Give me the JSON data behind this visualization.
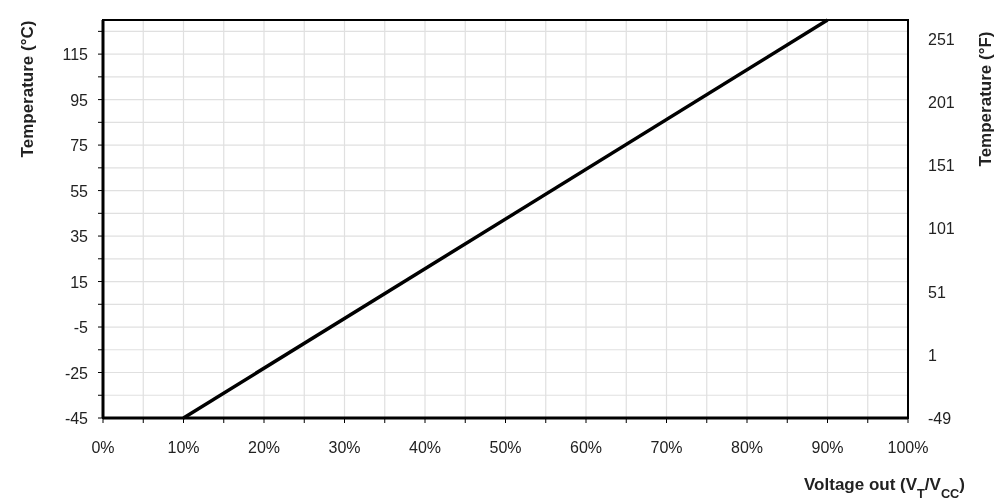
{
  "chart_data": {
    "type": "line",
    "xlabel": "Voltage out (V$_{T}$/V$_{CC}$)",
    "ylabel": "Temperature (°C)",
    "y2label": "Temperature (°F)",
    "x": [
      10,
      90
    ],
    "series": [
      {
        "color": "#000000",
        "values": [
          -45,
          130
        ]
      }
    ],
    "xlim": [
      0,
      100
    ],
    "xticks": [
      {
        "value": 0,
        "label": "0%"
      },
      {
        "value": 5,
        "label": null
      },
      {
        "value": 10,
        "label": "10%"
      },
      {
        "value": 15,
        "label": null
      },
      {
        "value": 20,
        "label": "20%"
      },
      {
        "value": 25,
        "label": null
      },
      {
        "value": 30,
        "label": "30%"
      },
      {
        "value": 35,
        "label": null
      },
      {
        "value": 40,
        "label": "40%"
      },
      {
        "value": 45,
        "label": null
      },
      {
        "value": 50,
        "label": "50%"
      },
      {
        "value": 55,
        "label": null
      },
      {
        "value": 60,
        "label": "60%"
      },
      {
        "value": 65,
        "label": null
      },
      {
        "value": 70,
        "label": "70%"
      },
      {
        "value": 75,
        "label": null
      },
      {
        "value": 80,
        "label": "80%"
      },
      {
        "value": 85,
        "label": null
      },
      {
        "value": 90,
        "label": "90%"
      },
      {
        "value": 95,
        "label": null
      },
      {
        "value": 100,
        "label": "100%"
      }
    ],
    "ylim": [
      -45,
      130
    ],
    "yticks": [
      -45,
      {
        "value": -35,
        "label": null
      },
      -25,
      {
        "value": -15,
        "label": null
      },
      -5,
      {
        "value": 5,
        "label": null
      },
      15,
      {
        "value": 25,
        "label": null
      },
      35,
      {
        "value": 45,
        "label": null
      },
      55,
      {
        "value": 65,
        "label": null
      },
      75,
      {
        "value": 85,
        "label": null
      },
      95,
      {
        "value": 105,
        "label": null
      },
      115,
      {
        "value": 125,
        "label": null
      }
    ],
    "y2lim": [
      -49,
      266
    ],
    "y2ticks": [
      -49,
      1,
      51,
      101,
      151,
      201,
      251
    ],
    "grid": true,
    "line_style": "solid",
    "marker": "none"
  }
}
